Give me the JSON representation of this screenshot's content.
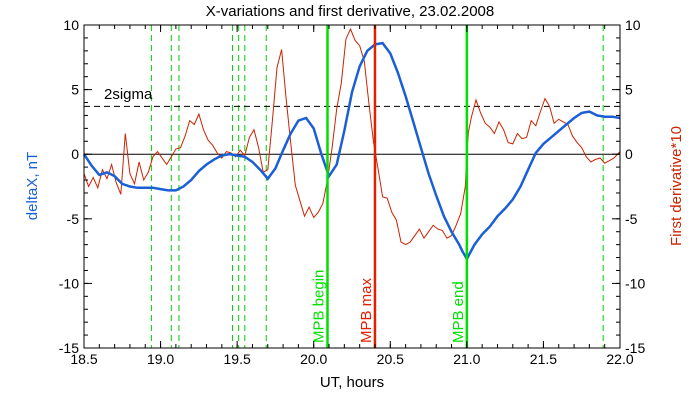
{
  "chart_data": {
    "type": "line",
    "title": "X-variations and first derivative, 23.02.2008",
    "xlabel": "UT, hours",
    "ylabel_left": "deltaX, nT",
    "ylabel_right": "First derivative*10",
    "xlim": [
      18.5,
      22.0
    ],
    "ylim": [
      -15,
      10
    ],
    "x_ticks": [
      18.5,
      19.0,
      19.5,
      20.0,
      20.5,
      21.0,
      21.5,
      22.0
    ],
    "x_tick_labels": [
      "18.5",
      "19.0",
      "19.5",
      "20.0",
      "20.5",
      "21.0",
      "21.5",
      "22.0"
    ],
    "y_ticks": [
      10,
      5,
      0,
      -5,
      -10,
      -15
    ],
    "y_tick_labels_left": [
      "10",
      "5",
      "0",
      "-5",
      "-10",
      "-15"
    ],
    "y_tick_labels_right": [
      "10",
      "5",
      "0",
      "-5",
      "-10",
      "-15"
    ],
    "zero_line": 0,
    "threshold": {
      "label": "2sigma",
      "value": 3.7
    },
    "dashed_markers": [
      18.94,
      19.07,
      19.12,
      19.47,
      19.51,
      19.55,
      19.69,
      21.89
    ],
    "vertical_lines": [
      {
        "x": 20.09,
        "label": "MPB begin",
        "color": "#00e000"
      },
      {
        "x": 20.4,
        "label": "MPB max",
        "color": "#e02000"
      },
      {
        "x": 21.0,
        "label": "MPB end",
        "color": "#00e000"
      }
    ],
    "series": [
      {
        "name": "deltaX, nT",
        "color": "#1a5fd6",
        "axis": "left",
        "x": [
          18.5,
          18.55,
          18.6,
          18.65,
          18.7,
          18.75,
          18.8,
          18.85,
          18.9,
          18.95,
          19.0,
          19.05,
          19.1,
          19.15,
          19.2,
          19.25,
          19.3,
          19.35,
          19.4,
          19.45,
          19.5,
          19.55,
          19.6,
          19.65,
          19.7,
          19.75,
          19.8,
          19.85,
          19.9,
          19.95,
          20.0,
          20.05,
          20.1,
          20.15,
          20.2,
          20.25,
          20.3,
          20.35,
          20.4,
          20.45,
          20.5,
          20.55,
          20.6,
          20.65,
          20.7,
          20.75,
          20.8,
          20.85,
          20.9,
          20.95,
          20.97,
          21.0,
          21.05,
          21.1,
          21.15,
          21.2,
          21.25,
          21.3,
          21.35,
          21.4,
          21.45,
          21.5,
          21.55,
          21.6,
          21.65,
          21.7,
          21.75,
          21.8,
          21.85,
          21.9,
          21.95,
          22.0
        ],
        "values": [
          0.0,
          -0.9,
          -1.6,
          -1.4,
          -1.7,
          -2.3,
          -2.5,
          -2.6,
          -2.6,
          -2.6,
          -2.7,
          -2.8,
          -2.8,
          -2.5,
          -2.0,
          -1.3,
          -0.8,
          -0.4,
          -0.1,
          0.0,
          -0.1,
          -0.2,
          -0.6,
          -1.2,
          -1.9,
          -1.1,
          0.3,
          1.6,
          2.6,
          2.8,
          2.0,
          0.0,
          -1.7,
          -0.8,
          1.8,
          4.8,
          6.8,
          8.0,
          8.5,
          8.6,
          7.8,
          6.3,
          4.5,
          2.5,
          0.5,
          -1.5,
          -3.2,
          -4.8,
          -6.0,
          -7.0,
          -7.5,
          -8.1,
          -7.0,
          -6.2,
          -5.6,
          -4.8,
          -4.2,
          -3.5,
          -2.5,
          -1.2,
          0.1,
          0.8,
          1.3,
          1.8,
          2.3,
          2.8,
          3.2,
          3.3,
          3.0,
          2.9,
          2.9,
          2.8
        ]
      },
      {
        "name": "First derivative*10",
        "color": "#cc2200",
        "axis": "right",
        "x": [
          18.5,
          18.53,
          18.56,
          18.59,
          18.62,
          18.65,
          18.68,
          18.71,
          18.74,
          18.77,
          18.8,
          18.83,
          18.86,
          18.89,
          18.92,
          18.95,
          18.98,
          19.01,
          19.04,
          19.07,
          19.1,
          19.13,
          19.16,
          19.19,
          19.22,
          19.25,
          19.28,
          19.31,
          19.34,
          19.37,
          19.4,
          19.43,
          19.46,
          19.49,
          19.52,
          19.55,
          19.58,
          19.61,
          19.64,
          19.67,
          19.7,
          19.73,
          19.76,
          19.79,
          19.82,
          19.85,
          19.88,
          19.91,
          19.94,
          19.97,
          20.0,
          20.03,
          20.06,
          20.09,
          20.12,
          20.15,
          20.18,
          20.21,
          20.24,
          20.27,
          20.3,
          20.33,
          20.36,
          20.39,
          20.42,
          20.45,
          20.48,
          20.51,
          20.54,
          20.57,
          20.6,
          20.63,
          20.66,
          20.69,
          20.72,
          20.75,
          20.78,
          20.81,
          20.84,
          20.87,
          20.9,
          20.93,
          20.96,
          20.99,
          21.0,
          21.01,
          21.03,
          21.06,
          21.09,
          21.12,
          21.15,
          21.18,
          21.21,
          21.24,
          21.27,
          21.3,
          21.33,
          21.36,
          21.39,
          21.42,
          21.45,
          21.48,
          21.51,
          21.54,
          21.57,
          21.6,
          21.63,
          21.66,
          21.69,
          21.72,
          21.75,
          21.78,
          21.81,
          21.84,
          21.87,
          21.9,
          21.93,
          21.96,
          22.0
        ],
        "values": [
          -1.5,
          -2.5,
          -1.8,
          -2.6,
          -1.2,
          -1.9,
          -0.8,
          -2.2,
          -3.1,
          1.6,
          -1.5,
          -2.3,
          -0.6,
          -2.0,
          -1.4,
          -0.2,
          0.2,
          -0.3,
          -0.8,
          -0.2,
          0.4,
          0.5,
          1.4,
          2.6,
          2.3,
          3.1,
          1.9,
          1.1,
          0.7,
          0.1,
          -0.3,
          0.2,
          0.1,
          -0.2,
          0.3,
          -0.1,
          1.3,
          1.9,
          0.5,
          -1.4,
          -1.2,
          2.6,
          6.7,
          8.1,
          4.3,
          0.9,
          -2.4,
          -3.6,
          -4.8,
          -4.1,
          -4.9,
          -4.5,
          -3.8,
          -2.0,
          0.5,
          3.5,
          5.5,
          8.9,
          9.7,
          8.8,
          8.4,
          7.2,
          4.0,
          1.0,
          -1.1,
          -3.3,
          -3.4,
          -4.5,
          -5.1,
          -6.8,
          -7.0,
          -6.8,
          -6.3,
          -5.8,
          -6.5,
          -6.0,
          -5.5,
          -5.8,
          -5.9,
          -6.5,
          -6.3,
          -5.5,
          -4.6,
          -2.5,
          0.1,
          1.7,
          2.9,
          4.2,
          3.2,
          2.4,
          2.1,
          1.6,
          2.5,
          1.9,
          0.9,
          0.8,
          1.6,
          1.2,
          1.3,
          2.6,
          2.2,
          3.3,
          4.3,
          3.7,
          2.4,
          2.7,
          2.5,
          2.3,
          1.4,
          0.9,
          0.5,
          -0.2,
          -0.6,
          -0.4,
          -0.3,
          -0.7,
          -0.5,
          -0.3,
          0.2
        ]
      }
    ]
  }
}
